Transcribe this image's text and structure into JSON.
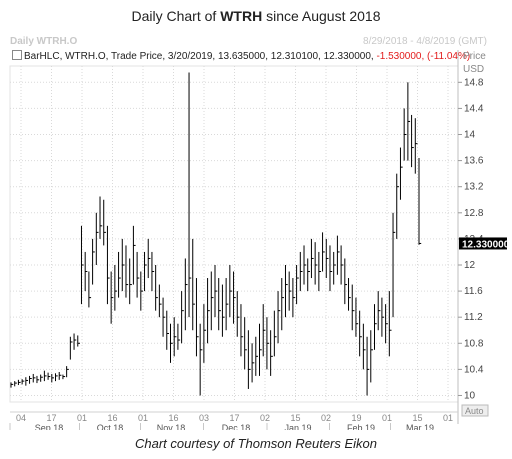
{
  "title_prefix": "Daily Chart of ",
  "title_ticker": "WTRH",
  "title_suffix": " since August 2018",
  "header_left": "Daily WTRH.O",
  "header_right": "8/29/2018 - 4/8/2019 (GMT)",
  "legend": {
    "text": "BarHLC, WTRH.O, Trade Price, 3/20/2019, 13.635000, 12.310100, 12.330000,",
    "change": "-1.530000, (-11.04%)"
  },
  "price_header": [
    "Price",
    "USD"
  ],
  "last_price_label": "12.330000",
  "auto_label": "Auto",
  "caption": "Chart courtesy of Thomson Reuters Eikon",
  "colors": {
    "bars": "#000000",
    "negative": "#e21b1b",
    "grid": "#d9d9d9",
    "price_tag": "#000000"
  },
  "chart_data": {
    "type": "bar",
    "style": "HLC",
    "y_ticks": [
      10,
      10.4,
      10.8,
      11.2,
      11.6,
      12,
      12.4,
      12.8,
      13.2,
      13.6,
      14,
      14.4,
      14.8
    ],
    "ylim": [
      9.9,
      15.05
    ],
    "x_day_ticks": [
      "04",
      "17",
      "01",
      "16",
      "01",
      "16",
      "03",
      "17",
      "02",
      "15",
      "02",
      "19",
      "01",
      "15",
      "01"
    ],
    "x_month_labels": [
      "Sep 18",
      "Oct 18",
      "Nov 18",
      "Dec 18",
      "Jan 19",
      "Feb 19",
      "Mar 19"
    ],
    "last_price": 12.33,
    "bars": [
      {
        "h": 10.2,
        "l": 10.12,
        "c": 10.17
      },
      {
        "h": 10.22,
        "l": 10.14,
        "c": 10.19
      },
      {
        "h": 10.24,
        "l": 10.16,
        "c": 10.2
      },
      {
        "h": 10.25,
        "l": 10.17,
        "c": 10.22
      },
      {
        "h": 10.28,
        "l": 10.15,
        "c": 10.23
      },
      {
        "h": 10.3,
        "l": 10.18,
        "c": 10.26
      },
      {
        "h": 10.33,
        "l": 10.2,
        "c": 10.27
      },
      {
        "h": 10.3,
        "l": 10.19,
        "c": 10.24
      },
      {
        "h": 10.32,
        "l": 10.21,
        "c": 10.28
      },
      {
        "h": 10.38,
        "l": 10.22,
        "c": 10.3
      },
      {
        "h": 10.35,
        "l": 10.24,
        "c": 10.29
      },
      {
        "h": 10.33,
        "l": 10.2,
        "c": 10.27
      },
      {
        "h": 10.34,
        "l": 10.22,
        "c": 10.3
      },
      {
        "h": 10.36,
        "l": 10.24,
        "c": 10.31
      },
      {
        "h": 10.32,
        "l": 10.25,
        "c": 10.29
      },
      {
        "h": 10.45,
        "l": 10.28,
        "c": 10.4
      },
      {
        "h": 10.9,
        "l": 10.55,
        "c": 10.82
      },
      {
        "h": 10.95,
        "l": 10.7,
        "c": 10.85
      },
      {
        "h": 10.92,
        "l": 10.75,
        "c": 10.8
      },
      {
        "h": 12.6,
        "l": 11.4,
        "c": 12.0
      },
      {
        "h": 12.2,
        "l": 11.6,
        "c": 11.9
      },
      {
        "h": 11.9,
        "l": 11.35,
        "c": 11.5
      },
      {
        "h": 12.4,
        "l": 11.7,
        "c": 12.2
      },
      {
        "h": 12.8,
        "l": 12.0,
        "c": 12.5
      },
      {
        "h": 13.05,
        "l": 12.4,
        "c": 12.6
      },
      {
        "h": 13.0,
        "l": 12.3,
        "c": 12.5
      },
      {
        "h": 12.6,
        "l": 11.4,
        "c": 11.8
      },
      {
        "h": 11.9,
        "l": 11.1,
        "c": 11.5
      },
      {
        "h": 12.0,
        "l": 11.3,
        "c": 11.6
      },
      {
        "h": 12.2,
        "l": 11.5,
        "c": 11.8
      },
      {
        "h": 12.4,
        "l": 11.6,
        "c": 12.0
      },
      {
        "h": 12.3,
        "l": 11.5,
        "c": 11.7
      },
      {
        "h": 12.1,
        "l": 11.4,
        "c": 11.7
      },
      {
        "h": 12.6,
        "l": 11.7,
        "c": 12.3
      },
      {
        "h": 12.2,
        "l": 11.5,
        "c": 11.8
      },
      {
        "h": 11.9,
        "l": 11.3,
        "c": 11.6
      },
      {
        "h": 12.2,
        "l": 11.6,
        "c": 12.0
      },
      {
        "h": 12.4,
        "l": 11.8,
        "c": 12.1
      },
      {
        "h": 12.2,
        "l": 11.6,
        "c": 11.9
      },
      {
        "h": 12.0,
        "l": 11.3,
        "c": 11.5
      },
      {
        "h": 11.7,
        "l": 11.2,
        "c": 11.4
      },
      {
        "h": 11.5,
        "l": 10.9,
        "c": 11.2
      },
      {
        "h": 11.3,
        "l": 10.7,
        "c": 10.95
      },
      {
        "h": 11.1,
        "l": 10.5,
        "c": 10.8
      },
      {
        "h": 11.2,
        "l": 10.6,
        "c": 10.9
      },
      {
        "h": 11.1,
        "l": 10.7,
        "c": 10.85
      },
      {
        "h": 11.6,
        "l": 10.8,
        "c": 11.3
      },
      {
        "h": 12.1,
        "l": 11.0,
        "c": 11.7
      },
      {
        "h": 14.95,
        "l": 11.2,
        "c": 11.8
      },
      {
        "h": 12.4,
        "l": 11.0,
        "c": 11.4
      },
      {
        "h": 11.8,
        "l": 10.6,
        "c": 10.9
      },
      {
        "h": 11.1,
        "l": 10.0,
        "c": 10.7
      },
      {
        "h": 11.4,
        "l": 10.5,
        "c": 11.0
      },
      {
        "h": 11.8,
        "l": 10.8,
        "c": 11.3
      },
      {
        "h": 11.9,
        "l": 11.0,
        "c": 11.5
      },
      {
        "h": 12.0,
        "l": 11.2,
        "c": 11.6
      },
      {
        "h": 11.8,
        "l": 11.0,
        "c": 11.3
      },
      {
        "h": 11.7,
        "l": 10.9,
        "c": 11.2
      },
      {
        "h": 11.8,
        "l": 11.0,
        "c": 11.4
      },
      {
        "h": 12.0,
        "l": 11.2,
        "c": 11.6
      },
      {
        "h": 11.9,
        "l": 11.1,
        "c": 11.5
      },
      {
        "h": 11.6,
        "l": 10.9,
        "c": 11.2
      },
      {
        "h": 11.4,
        "l": 10.6,
        "c": 10.9
      },
      {
        "h": 11.2,
        "l": 10.4,
        "c": 10.7
      },
      {
        "h": 11.0,
        "l": 10.1,
        "c": 10.4
      },
      {
        "h": 10.8,
        "l": 10.2,
        "c": 10.5
      },
      {
        "h": 10.9,
        "l": 10.3,
        "c": 10.6
      },
      {
        "h": 11.1,
        "l": 10.3,
        "c": 10.7
      },
      {
        "h": 11.4,
        "l": 10.6,
        "c": 11.0
      },
      {
        "h": 11.2,
        "l": 10.4,
        "c": 10.8
      },
      {
        "h": 11.0,
        "l": 10.3,
        "c": 10.6
      },
      {
        "h": 11.3,
        "l": 10.6,
        "c": 10.9
      },
      {
        "h": 11.6,
        "l": 10.8,
        "c": 11.3
      },
      {
        "h": 11.8,
        "l": 11.0,
        "c": 11.5
      },
      {
        "h": 12.0,
        "l": 11.2,
        "c": 11.7
      },
      {
        "h": 11.9,
        "l": 11.3,
        "c": 11.6
      },
      {
        "h": 11.8,
        "l": 11.2,
        "c": 11.5
      },
      {
        "h": 12.0,
        "l": 11.4,
        "c": 11.8
      },
      {
        "h": 12.2,
        "l": 11.6,
        "c": 11.9
      },
      {
        "h": 12.3,
        "l": 11.7,
        "c": 12.0
      },
      {
        "h": 12.1,
        "l": 11.6,
        "c": 11.9
      },
      {
        "h": 12.4,
        "l": 11.8,
        "c": 12.1
      },
      {
        "h": 12.35,
        "l": 11.7,
        "c": 12.0
      },
      {
        "h": 12.2,
        "l": 11.6,
        "c": 11.9
      },
      {
        "h": 12.5,
        "l": 11.9,
        "c": 12.2
      },
      {
        "h": 12.4,
        "l": 11.8,
        "c": 12.1
      },
      {
        "h": 12.3,
        "l": 11.6,
        "c": 11.9
      },
      {
        "h": 12.2,
        "l": 11.7,
        "c": 12.0
      },
      {
        "h": 12.45,
        "l": 11.85,
        "c": 12.2
      },
      {
        "h": 12.3,
        "l": 11.7,
        "c": 12.0
      },
      {
        "h": 12.1,
        "l": 11.4,
        "c": 11.7
      },
      {
        "h": 11.8,
        "l": 11.3,
        "c": 11.5
      },
      {
        "h": 11.7,
        "l": 11.0,
        "c": 11.3
      },
      {
        "h": 11.5,
        "l": 10.9,
        "c": 11.1
      },
      {
        "h": 11.3,
        "l": 10.6,
        "c": 10.9
      },
      {
        "h": 11.1,
        "l": 10.4,
        "c": 10.7
      },
      {
        "h": 10.9,
        "l": 10.0,
        "c": 10.4
      },
      {
        "h": 11.0,
        "l": 10.2,
        "c": 10.7
      },
      {
        "h": 11.4,
        "l": 10.7,
        "c": 11.1
      },
      {
        "h": 11.6,
        "l": 11.0,
        "c": 11.3
      },
      {
        "h": 11.5,
        "l": 10.9,
        "c": 11.2
      },
      {
        "h": 11.4,
        "l": 10.8,
        "c": 11.1
      },
      {
        "h": 11.6,
        "l": 10.6,
        "c": 11.0
      },
      {
        "h": 12.8,
        "l": 11.2,
        "c": 12.5
      },
      {
        "h": 13.4,
        "l": 12.4,
        "c": 13.2
      },
      {
        "h": 13.8,
        "l": 13.0,
        "c": 13.5
      },
      {
        "h": 14.4,
        "l": 13.6,
        "c": 14.0
      },
      {
        "h": 14.8,
        "l": 13.6,
        "c": 14.2
      },
      {
        "h": 14.3,
        "l": 13.5,
        "c": 13.8
      },
      {
        "h": 14.25,
        "l": 13.4,
        "c": 13.86
      },
      {
        "h": 13.64,
        "l": 12.31,
        "c": 12.33
      }
    ]
  }
}
